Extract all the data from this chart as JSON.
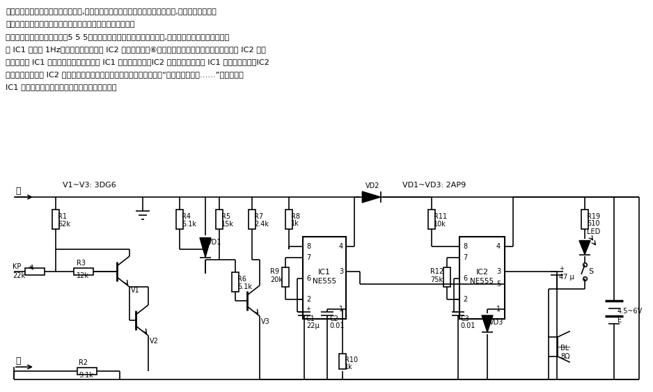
{
  "bg_color": "#ffffff",
  "line_color": "#000000",
  "text_color": "#000000",
  "header_lines": [
    "针灸治疗必须准确掌握穴位方见疗效,利用穴位点较其周围皮肤电阴低一些的特点,制作一台简易探穴",
    "仪电路，能对穴位作出准确定位，给针灸治疗带来很大方便。",
    "　　电路示于图：　　用两坘5 5 5时基电路构成不同频率的多谐振荡器,产生单音或双音模拟声。振荡",
    "器 IC1 频率为 1Hz，用它去控制振荡器 IC2 的电压控制端⑥脚的电位，使基准电压和延时可变，即 IC2 的振",
    "荡频率随着 IC1 输出的调制信号变化。当 IC1 输出高电平时，IC2 的振荡频率低；当 IC1 输出低电平时，IC2",
    "的振荡频率高。将 IC2 的音频频率调制在两个频率上，在扬声器中产生“嘶、嗟，嘶、嗟……”的双音。当",
    "IC1 输出的调制信号幅値不变时，发出单音音响。"
  ],
  "figsize": [
    9.38,
    5.63
  ],
  "dpi": 100
}
